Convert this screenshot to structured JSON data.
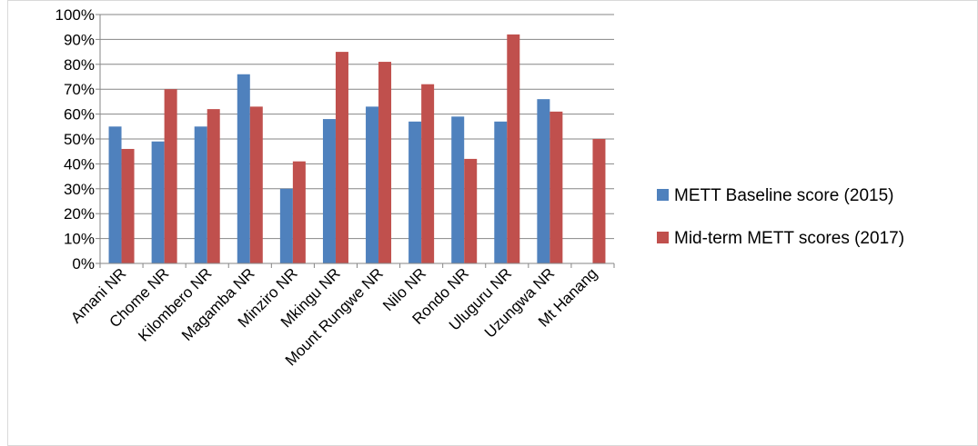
{
  "chart_data": {
    "type": "bar",
    "categories": [
      "Amani NR",
      "Chome NR",
      "Kilombero NR",
      "Magamba NR",
      "Minziro NR",
      "Mkingu NR",
      "Mount Rungwe NR",
      "Nilo NR",
      "Rondo NR",
      "Uluguru NR",
      "Uzungwa NR",
      "Mt Hanang"
    ],
    "series": [
      {
        "name": "METT Baseline score (2015)",
        "color": "#4f81bd",
        "values": [
          55,
          49,
          55,
          76,
          30,
          58,
          63,
          57,
          59,
          57,
          66,
          null
        ]
      },
      {
        "name": "Mid-term METT scores (2017)",
        "color": "#c0504d",
        "values": [
          46,
          70,
          62,
          63,
          41,
          85,
          81,
          72,
          42,
          92,
          61,
          50
        ]
      }
    ],
    "yticks": [
      "0%",
      "10%",
      "20%",
      "30%",
      "40%",
      "50%",
      "60%",
      "70%",
      "80%",
      "90%",
      "100%"
    ],
    "ylim": [
      0,
      100
    ],
    "grid": true,
    "legend": "right",
    "title": "",
    "xlabel": "",
    "ylabel": ""
  }
}
